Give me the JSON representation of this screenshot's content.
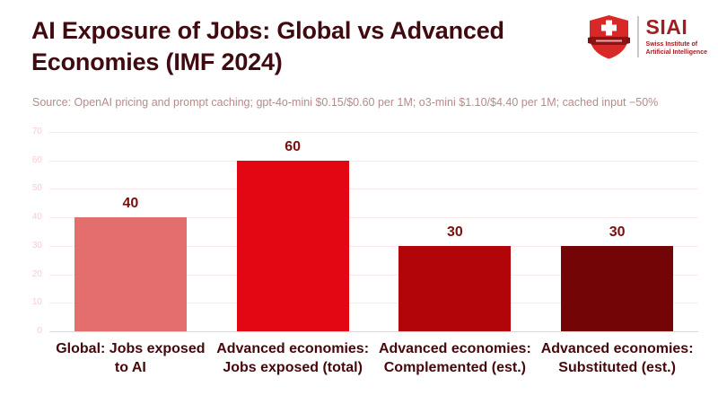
{
  "header": {
    "title": "AI Exposure of Jobs: Global vs Advanced\nEconomies (IMF 2024)"
  },
  "logo": {
    "name": "SIAI",
    "subtitle_line1": "Swiss Institute of",
    "subtitle_line2": "Artificial Intelligence",
    "shield_color": "#d82828",
    "banner_color": "#8c1414",
    "text_color": "#a11d22"
  },
  "source": "Source: OpenAI pricing and prompt caching; gpt-4o-mini $0.15/$0.60 per 1M; o3-mini $1.10/$4.40 per 1M; cached input −50%",
  "chart_data": {
    "type": "bar",
    "title": "AI Exposure of Jobs: Global vs Advanced Economies (IMF 2024)",
    "categories": [
      "Global: Jobs exposed\nto AI",
      "Advanced economies:\nJobs exposed (total)",
      "Advanced economies:\nComplemented (est.)",
      "Advanced economies:\nSubstituted (est.)"
    ],
    "values": [
      40,
      60,
      30,
      30
    ],
    "bar_colors": [
      "#e26e6e",
      "#e30613",
      "#b10509",
      "#730507"
    ],
    "value_labels": [
      "40",
      "60",
      "30",
      "30"
    ],
    "xlabel": "",
    "ylabel": "",
    "ylim": [
      0,
      70
    ],
    "yticks": [
      0,
      10,
      20,
      30,
      40,
      50,
      60,
      70
    ],
    "grid": true,
    "legend": "none"
  },
  "colors": {
    "title_text": "#400b10",
    "source_text": "#b78a8a",
    "value_label_text": "#7a0f0f",
    "category_label_text": "#45080c",
    "ytick_text": "#f5cfcf",
    "gridline": "#fceaea",
    "axis_baseline": "#d9d9d9",
    "background": "#ffffff"
  }
}
